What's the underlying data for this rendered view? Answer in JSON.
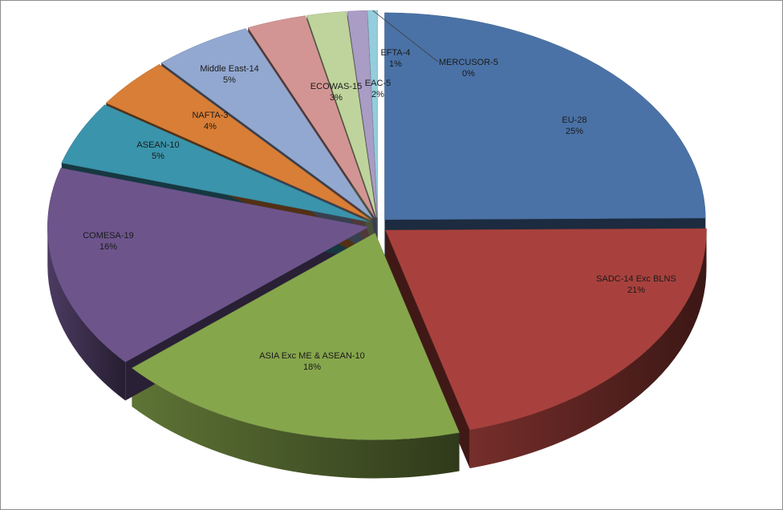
{
  "chart_data": {
    "type": "pie",
    "style": "3d-exploded",
    "title": "",
    "legend": "none",
    "slices": [
      {
        "name": "EU-28",
        "percent": "25%",
        "value": 25,
        "color": "#4a72a6"
      },
      {
        "name": "SADC-14 Exc BLNS",
        "percent": "21%",
        "value": 21,
        "color": "#a8413d"
      },
      {
        "name": "ASIA Exc ME & ASEAN-10",
        "percent": "18%",
        "value": 18,
        "color": "#86a64c"
      },
      {
        "name": "COMESA-19",
        "percent": "16%",
        "value": 16,
        "color": "#6d558c"
      },
      {
        "name": "ASEAN-10",
        "percent": "5%",
        "value": 5,
        "color": "#3a94ab"
      },
      {
        "name": "NAFTA-3",
        "percent": "4%",
        "value": 4,
        "color": "#d97e36"
      },
      {
        "name": "Middle East-14",
        "percent": "5%",
        "value": 5,
        "color": "#92a8d0"
      },
      {
        "name": "ECOWAS-15",
        "percent": "3%",
        "value": 3,
        "color": "#d39593"
      },
      {
        "name": "EAC-5",
        "percent": "2%",
        "value": 2,
        "color": "#bfd49c"
      },
      {
        "name": "EFTA-4",
        "percent": "1%",
        "value": 1,
        "color": "#a99cc5"
      },
      {
        "name": "MERCUSOR-5",
        "percent": "0%",
        "value": 0.5,
        "color": "#94cddd"
      }
    ]
  }
}
